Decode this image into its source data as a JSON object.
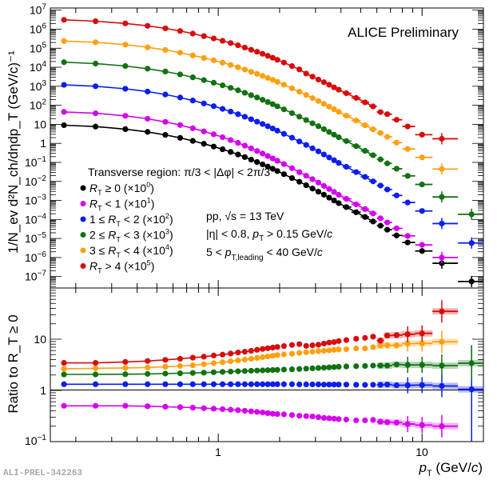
{
  "chart_data": [
    {
      "panel": "spectra",
      "type": "scatter",
      "title": "ALICE Preliminary",
      "xlabel": "p_T (GeV/c)",
      "ylabel": "1/N_ev d^2N_ch/dη dp_T (GeV/c)^-1",
      "xscale": "log",
      "yscale": "log",
      "xlim": [
        0.15,
        20
      ],
      "ylim": [
        2.5e-08,
        13000000.0
      ],
      "ytick_labels": [
        "10^7",
        "10^6",
        "10^5",
        "10^4",
        "10^3",
        "10^2",
        "10",
        "1",
        "10^-1",
        "10^-2",
        "10^-3",
        "10^-4",
        "10^-5",
        "10^-6",
        "10^-7"
      ],
      "ytick_values": [
        10000000.0,
        1000000.0,
        100000.0,
        10000.0,
        1000.0,
        100.0,
        10,
        1,
        0.1,
        0.01,
        0.001,
        0.0001,
        1e-05,
        1e-06,
        1e-07
      ],
      "legend_header": "Transverse region: π/3 < |Δφ| < 2π/3",
      "legend_position": "center-left",
      "annotations": [
        "pp, √s = 13 TeV",
        "|η| < 0.8, p_T > 0.15 GeV/c",
        "5 < p_T,leading < 40 GeV/c"
      ],
      "x": [
        0.175,
        0.25,
        0.35,
        0.45,
        0.55,
        0.65,
        0.75,
        0.85,
        0.95,
        1.05,
        1.15,
        1.25,
        1.35,
        1.45,
        1.55,
        1.65,
        1.75,
        1.85,
        1.95,
        2.1,
        2.3,
        2.5,
        2.7,
        2.9,
        3.1,
        3.3,
        3.5,
        3.7,
        3.9,
        4.25,
        4.75,
        5.25,
        5.75,
        6.25,
        6.75,
        7.5,
        8.5,
        10.0,
        12.5,
        17.5
      ],
      "series": [
        {
          "name": "R_T ≥ 0 (×10^0)",
          "color": "#000000",
          "scale": 1,
          "values": [
            9.0,
            7.6,
            5.6,
            4.0,
            2.8,
            1.95,
            1.35,
            0.95,
            0.68,
            0.49,
            0.355,
            0.26,
            0.19,
            0.14,
            0.105,
            0.079,
            0.06,
            0.046,
            0.035,
            0.024,
            0.015,
            0.0096,
            0.0063,
            0.0042,
            0.0029,
            0.002,
            0.0014,
            0.001,
            0.00072,
            0.00045,
            0.00024,
            0.000135,
            7.8e-05,
            4.7e-05,
            2.9e-05,
            1.45e-05,
            6.2e-06,
            2.2e-06,
            5e-07,
            5.5e-08
          ]
        },
        {
          "name": "R_T < 1 (×10^1)",
          "color": "#d400f0",
          "scale": 10,
          "ratio": [
            0.5,
            0.5,
            0.5,
            0.49,
            0.48,
            0.47,
            0.46,
            0.45,
            0.44,
            0.43,
            0.42,
            0.41,
            0.4,
            0.39,
            0.38,
            0.37,
            0.36,
            0.35,
            0.345,
            0.34,
            0.33,
            0.32,
            0.315,
            0.31,
            0.3,
            0.29,
            0.285,
            0.28,
            0.275,
            0.27,
            0.26,
            0.26,
            0.265,
            0.245,
            0.24,
            0.235,
            0.22,
            0.21,
            0.2,
            null
          ]
        },
        {
          "name": "1 ≤ R_T < 2 (×10^2)",
          "color": "#0a1ef0",
          "scale": 100,
          "ratio": [
            1.32,
            1.32,
            1.32,
            1.32,
            1.32,
            1.32,
            1.32,
            1.32,
            1.32,
            1.32,
            1.32,
            1.32,
            1.32,
            1.32,
            1.32,
            1.32,
            1.32,
            1.32,
            1.32,
            1.32,
            1.32,
            1.31,
            1.31,
            1.31,
            1.31,
            1.3,
            1.3,
            1.3,
            1.3,
            1.3,
            1.29,
            1.28,
            1.29,
            1.29,
            1.3,
            1.26,
            1.26,
            1.27,
            1.22,
            1.05
          ]
        },
        {
          "name": "2 ≤ R_T < 3 (×10^3)",
          "color": "#117211",
          "scale": 1000,
          "ratio": [
            2.05,
            2.05,
            2.07,
            2.1,
            2.13,
            2.16,
            2.19,
            2.22,
            2.26,
            2.3,
            2.33,
            2.36,
            2.39,
            2.42,
            2.44,
            2.46,
            2.48,
            2.5,
            2.52,
            2.55,
            2.58,
            2.62,
            2.66,
            2.7,
            2.74,
            2.78,
            2.82,
            2.86,
            2.9,
            2.94,
            2.97,
            3.0,
            3.05,
            3.05,
            3.05,
            3.2,
            3.15,
            3.15,
            3.05,
            3.4
          ]
        },
        {
          "name": "3 ≤ R_T < 4 (×10^4)",
          "color": "#ffa010",
          "scale": 10000,
          "ratio": [
            2.65,
            2.7,
            2.75,
            2.8,
            2.9,
            3.0,
            3.1,
            3.25,
            3.4,
            3.55,
            3.7,
            3.85,
            4.0,
            4.15,
            4.3,
            4.45,
            4.6,
            4.75,
            4.9,
            5.05,
            5.2,
            5.4,
            5.55,
            5.7,
            5.85,
            5.95,
            6.05,
            6.2,
            6.3,
            6.35,
            6.6,
            6.6,
            7.0,
            7.5,
            7.6,
            7.6,
            8.2,
            8.3,
            8.9,
            null
          ]
        },
        {
          "name": "R_T > 4 (×10^5)",
          "color": "#d80c0c",
          "scale": 100000,
          "ratio": [
            3.45,
            3.45,
            3.6,
            3.75,
            3.95,
            4.15,
            4.35,
            4.55,
            4.8,
            5.0,
            5.25,
            5.5,
            5.7,
            5.95,
            6.2,
            6.45,
            6.65,
            6.85,
            7.05,
            7.35,
            7.7,
            8.0,
            7.4,
            7.6,
            7.8,
            8.2,
            8.6,
            8.8,
            9.2,
            9.6,
            10.2,
            10.6,
            11.2,
            9.4,
            11.8,
            12.0,
            12.5,
            13.0,
            35.0,
            null
          ]
        }
      ]
    },
    {
      "panel": "ratio",
      "type": "scatter",
      "xlabel": "p_T (GeV/c)",
      "ylabel": "Ratio to R_T ≥ 0",
      "xscale": "log",
      "yscale": "log",
      "xlim": [
        0.15,
        20
      ],
      "ylim": [
        0.1,
        100
      ],
      "ytick_labels": [
        "10",
        "1",
        "10^-1"
      ],
      "ytick_values": [
        10,
        1,
        0.1
      ],
      "xtick_labels": [
        "1",
        "10"
      ],
      "xtick_values": [
        1,
        10
      ],
      "reference_line": 1
    }
  ],
  "footer": {
    "label": "ALI-PREL-342263"
  },
  "labels": {
    "alice": "ALICE Preliminary",
    "top_y_axis": "1/N_ev d²N_ch/dηdp_T (GeV/c)⁻¹",
    "bottom_y_axis": "Ratio to R_T ≥ 0",
    "x_axis": "p_T (GeV/c)",
    "legend_header": "Transverse region: π/3 < |Δφ| < 2π/3",
    "legend": [
      {
        "prefix": "",
        "var": "R",
        "rel": " ≥ 0 (×10",
        "exp": "0",
        "color": "#000000"
      },
      {
        "prefix": "",
        "var": "R",
        "rel": " < 1 (×10",
        "exp": "1",
        "color": "#d400f0"
      },
      {
        "prefix": "1 ≤ ",
        "var": "R",
        "rel": " < 2 (×10",
        "exp": "2",
        "color": "#0a1ef0"
      },
      {
        "prefix": "2 ≤ ",
        "var": "R",
        "rel": " < 3 (×10",
        "exp": "3",
        "color": "#117211"
      },
      {
        "prefix": "3 ≤ ",
        "var": "R",
        "rel": " < 4 (×10",
        "exp": "4",
        "color": "#ffa010"
      },
      {
        "prefix": "",
        "var": "R",
        "rel": " > 4 (×10",
        "exp": "5",
        "color": "#d80c0c"
      }
    ],
    "annot_line1": "pp, √s = 13 TeV",
    "annot_line2_a": "|η| < 0.8, ",
    "annot_line2_b": " > 0.15 GeV/",
    "annot_line3_a": "5 < ",
    "annot_line3_b": " < 40 GeV/",
    "sub_T": "T",
    "sub_T_leading": "T,leading",
    "p": "p",
    "c": "c",
    "x_tick_1": "1",
    "x_tick_10": "10"
  }
}
